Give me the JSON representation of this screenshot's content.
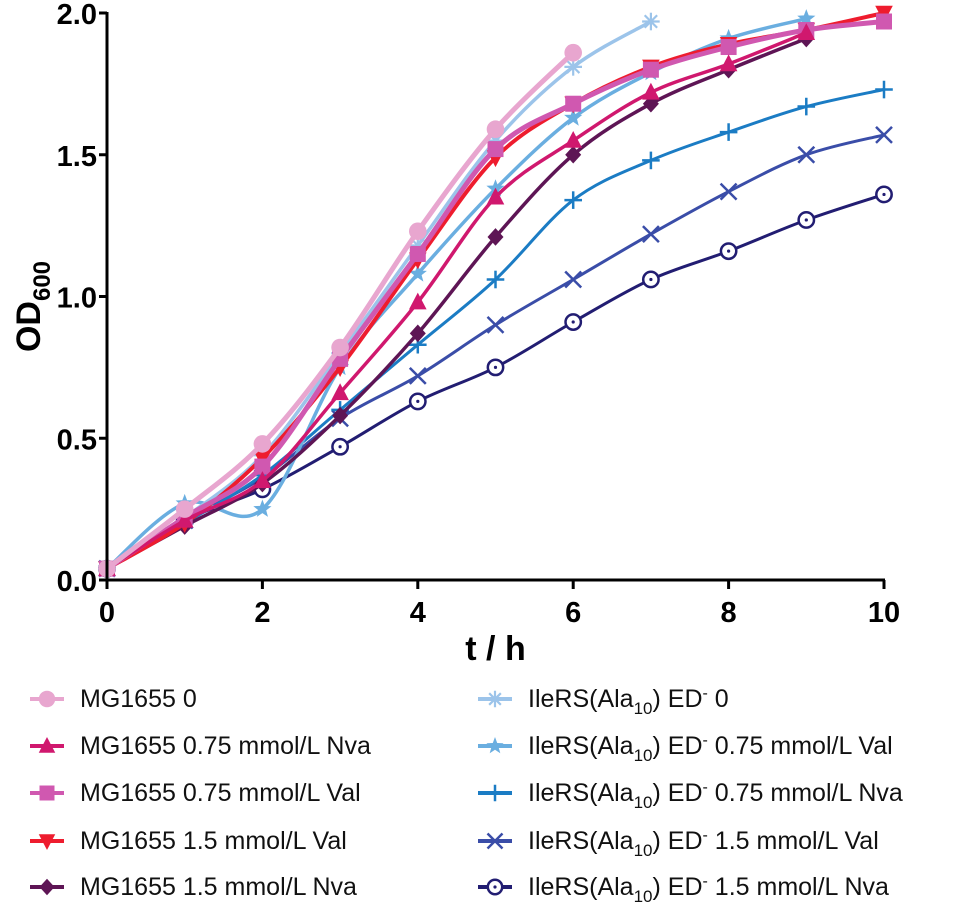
{
  "chart_data": {
    "type": "line",
    "title": "",
    "xlabel": "t / h",
    "ylabel": "OD",
    "ylabel_subscript": "600",
    "xlim": [
      0,
      10
    ],
    "ylim": [
      0,
      2.0
    ],
    "xticks": [
      0,
      2,
      4,
      6,
      8,
      10
    ],
    "xtick_labels": [
      "0",
      "2",
      "4",
      "6",
      "8",
      "10"
    ],
    "yticks": [
      0,
      0.5,
      1.0,
      1.5,
      2.0
    ],
    "ytick_labels": [
      "0.0",
      "0.5",
      "1.0",
      "1.5",
      "2.0"
    ],
    "grid": false,
    "legend_position": "bottom",
    "series": [
      {
        "name": "MG1655 0",
        "name_parts": {
          "main": "MG1655 0"
        },
        "color": "#e8a6cf",
        "marker": "circle",
        "x": [
          0,
          1,
          2,
          3,
          4,
          5,
          6
        ],
        "values": [
          0.04,
          0.25,
          0.48,
          0.82,
          1.23,
          1.59,
          1.86
        ]
      },
      {
        "name": "MG1655 0.75 mmol/L Nva",
        "name_parts": {
          "main": "MG1655 0.75 mmol/L Nva"
        },
        "color": "#d0186e",
        "marker": "triangle-up",
        "x": [
          0,
          1,
          2,
          3,
          4,
          5,
          6,
          7,
          8,
          9
        ],
        "values": [
          0.04,
          0.21,
          0.35,
          0.66,
          0.98,
          1.35,
          1.55,
          1.72,
          1.82,
          1.93
        ]
      },
      {
        "name": "MG1655 0.75 mmol/L Val",
        "name_parts": {
          "main": "MG1655 0.75 mmol/L Val"
        },
        "color": "#d058b0",
        "marker": "square",
        "x": [
          0,
          1,
          2,
          3,
          4,
          5,
          6,
          7,
          8,
          9,
          10
        ],
        "values": [
          0.04,
          0.22,
          0.4,
          0.78,
          1.15,
          1.52,
          1.68,
          1.8,
          1.88,
          1.94,
          1.97
        ]
      },
      {
        "name": "MG1655 1.5 mmol/L Val",
        "name_parts": {
          "main": "MG1655 1.5 mmol/L Val"
        },
        "color": "#ee1c2e",
        "marker": "triangle-down",
        "x": [
          0,
          1,
          2,
          3,
          4,
          5,
          6,
          7,
          8,
          9,
          10
        ],
        "values": [
          0.04,
          0.2,
          0.43,
          0.75,
          1.13,
          1.49,
          1.68,
          1.81,
          1.89,
          1.94,
          2.0
        ]
      },
      {
        "name": "MG1655 1.5 mmol/L Nva",
        "name_parts": {
          "main": "MG1655 1.5 mmol/L Nva"
        },
        "color": "#5e1555",
        "marker": "diamond",
        "x": [
          0,
          1,
          2,
          3,
          4,
          5,
          6,
          7,
          8,
          9
        ],
        "values": [
          0.04,
          0.19,
          0.34,
          0.58,
          0.87,
          1.21,
          1.5,
          1.68,
          1.8,
          1.91
        ]
      },
      {
        "name": "IleRS(Ala10) ED- 0",
        "name_parts": {
          "main": "IleRS(Ala",
          "sub": "10",
          "mid": ") ED",
          "sup": "-",
          "tail": " 0"
        },
        "color": "#9cc4ea",
        "marker": "asterisk",
        "x": [
          0,
          1,
          2,
          3,
          4,
          5,
          6,
          7
        ],
        "values": [
          0.04,
          0.22,
          0.44,
          0.8,
          1.18,
          1.55,
          1.81,
          1.97
        ]
      },
      {
        "name": "IleRS(Ala10) ED- 0.75 mmol/L Val",
        "name_parts": {
          "main": "IleRS(Ala",
          "sub": "10",
          "mid": ") ED",
          "sup": "-",
          "tail": " 0.75 mmol/L Val"
        },
        "color": "#6aaee0",
        "marker": "star",
        "x": [
          0,
          1,
          2,
          3,
          4,
          5,
          6,
          7,
          8,
          9
        ],
        "values": [
          0.04,
          0.27,
          0.25,
          0.75,
          1.08,
          1.38,
          1.63,
          1.79,
          1.91,
          1.98
        ]
      },
      {
        "name": "IleRS(Ala10) ED- 0.75 mmol/L Nva",
        "name_parts": {
          "main": "IleRS(Ala",
          "sub": "10",
          "mid": ") ED",
          "sup": "-",
          "tail": " 0.75 mmol/L Nva"
        },
        "color": "#1b7cc4",
        "marker": "plus",
        "x": [
          0,
          1,
          2,
          3,
          4,
          5,
          6,
          7,
          8,
          9,
          10
        ],
        "values": [
          0.04,
          0.2,
          0.37,
          0.6,
          0.83,
          1.06,
          1.34,
          1.48,
          1.58,
          1.67,
          1.73
        ]
      },
      {
        "name": "IleRS(Ala10) ED- 1.5 mmol/L Val",
        "name_parts": {
          "main": "IleRS(Ala",
          "sub": "10",
          "mid": ") ED",
          "sup": "-",
          "tail": " 1.5 mmol/L Val"
        },
        "color": "#3a4da8",
        "marker": "x",
        "x": [
          0,
          1,
          2,
          3,
          4,
          5,
          6,
          7,
          8,
          9,
          10
        ],
        "values": [
          0.04,
          0.21,
          0.36,
          0.57,
          0.72,
          0.9,
          1.06,
          1.22,
          1.37,
          1.5,
          1.57
        ]
      },
      {
        "name": "IleRS(Ala10) ED- 1.5 mmol/L Nva",
        "name_parts": {
          "main": "IleRS(Ala",
          "sub": "10",
          "mid": ") ED",
          "sup": "-",
          "tail": " 1.5 mmol/L Nva"
        },
        "color": "#221d72",
        "marker": "circle-open",
        "x": [
          0,
          1,
          2,
          3,
          4,
          5,
          6,
          7,
          8,
          9,
          10
        ],
        "values": [
          0.04,
          0.21,
          0.32,
          0.47,
          0.63,
          0.75,
          0.91,
          1.06,
          1.16,
          1.27,
          1.36
        ]
      }
    ]
  }
}
